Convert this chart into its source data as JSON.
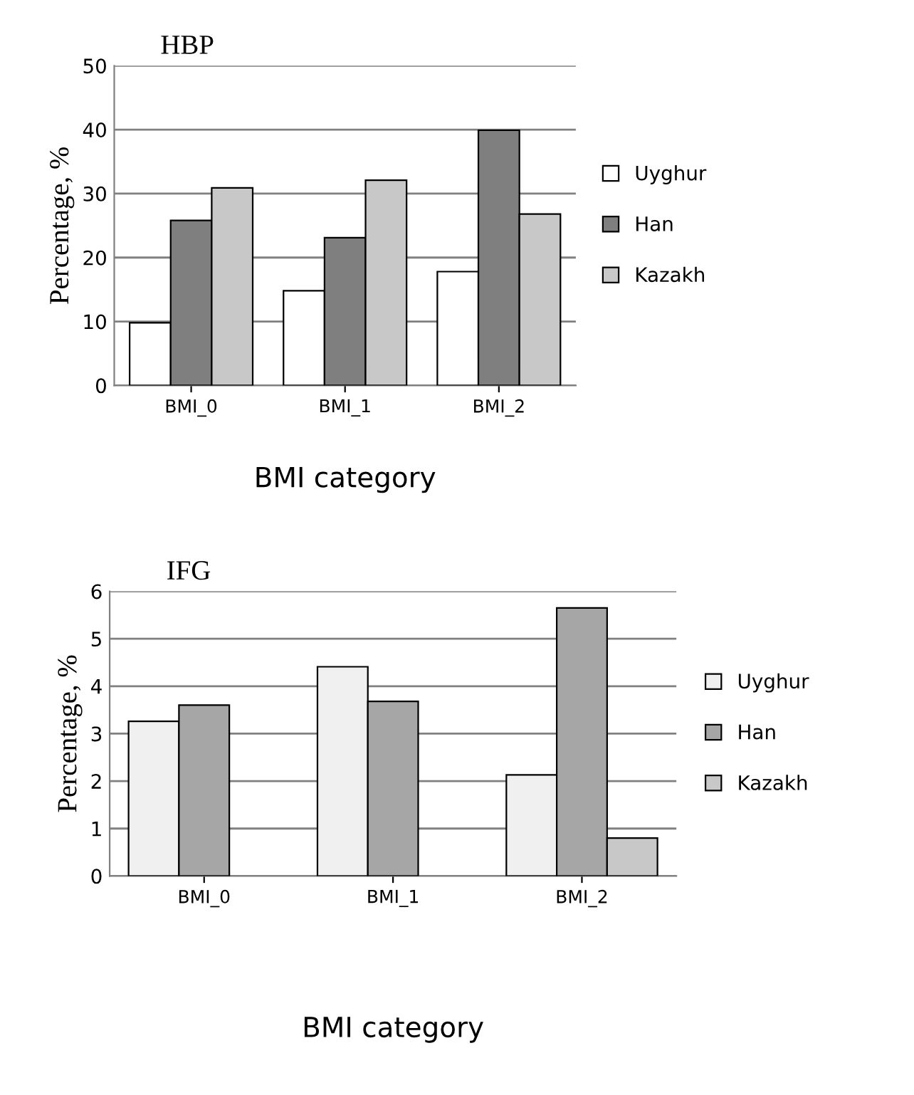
{
  "chart_data": [
    {
      "type": "bar",
      "title": "HBP",
      "xlabel": "BMI category",
      "ylabel": "Percentage, %",
      "categories": [
        "BMI_0",
        "BMI_1",
        "BMI_2"
      ],
      "series": [
        {
          "name": "Uyghur",
          "color": "#ffffff",
          "values": [
            9.8,
            14.8,
            17.8
          ]
        },
        {
          "name": "Han",
          "color": "#7f7f7f",
          "values": [
            25.8,
            23.1,
            39.9
          ]
        },
        {
          "name": "Kazakh",
          "color": "#c8c8c8",
          "values": [
            30.9,
            32.1,
            26.8
          ]
        }
      ],
      "ylim": [
        0,
        50
      ],
      "yticks": [
        0,
        10,
        20,
        30,
        40,
        50
      ],
      "grid": "y",
      "legend": "right"
    },
    {
      "type": "bar",
      "title": "IFG",
      "xlabel": "BMI category",
      "ylabel": "Percentage, %",
      "categories": [
        "BMI_0",
        "BMI_1",
        "BMI_2"
      ],
      "series": [
        {
          "name": "Uyghur",
          "color": "#f0f0f0",
          "values": [
            3.26,
            4.41,
            2.13
          ]
        },
        {
          "name": "Han",
          "color": "#a6a6a6",
          "values": [
            3.6,
            3.68,
            5.65
          ]
        },
        {
          "name": "Kazakh",
          "color": "#c8c8c8",
          "values": [
            null,
            null,
            0.8
          ]
        }
      ],
      "ylim": [
        0,
        6
      ],
      "yticks": [
        0,
        1,
        2,
        3,
        4,
        5,
        6
      ],
      "grid": "y",
      "legend": "right"
    }
  ]
}
